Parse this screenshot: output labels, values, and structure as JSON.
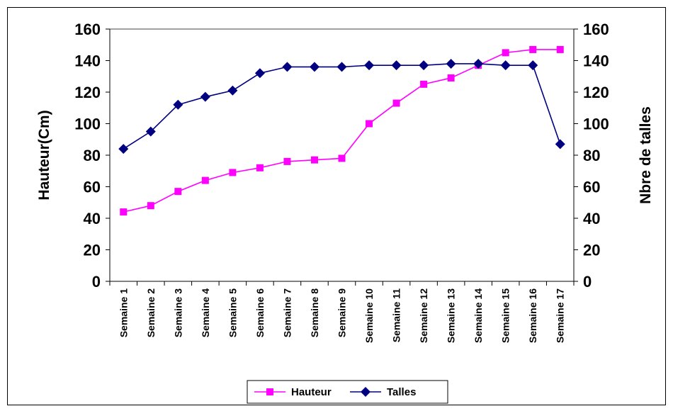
{
  "chart_data": {
    "type": "line",
    "categories": [
      "Semaine 1",
      "Semaine 2",
      "Semaine 3",
      "Semaine 4",
      "Semaine 5",
      "Semaine 6",
      "Semaine 7",
      "Semaine 8",
      "Semaine 9",
      "Semaine 10",
      "Semaine 11",
      "Semaine 12",
      "Semaine 13",
      "Semaine 14",
      "Semaine 15",
      "Semaine 16",
      "Semaine 17"
    ],
    "series": [
      {
        "name": "Hauteur",
        "axis": "left",
        "color": "#ff00ff",
        "marker": "square",
        "values": [
          44,
          48,
          57,
          64,
          69,
          72,
          76,
          77,
          78,
          100,
          113,
          125,
          129,
          137,
          145,
          147,
          147
        ]
      },
      {
        "name": "Talles",
        "axis": "right",
        "color": "#000080",
        "marker": "diamond",
        "values": [
          84,
          95,
          112,
          117,
          121,
          132,
          136,
          136,
          136,
          137,
          137,
          137,
          138,
          138,
          137,
          137,
          87
        ]
      }
    ],
    "ylabel": "Hauteur(Cm)",
    "y2label": "Nbre de talles",
    "ylim": [
      0,
      160
    ],
    "y2lim": [
      0,
      160
    ],
    "yticks": [
      0,
      20,
      40,
      60,
      80,
      100,
      120,
      140,
      160
    ],
    "grid": "top line only",
    "legend_position": "bottom"
  }
}
